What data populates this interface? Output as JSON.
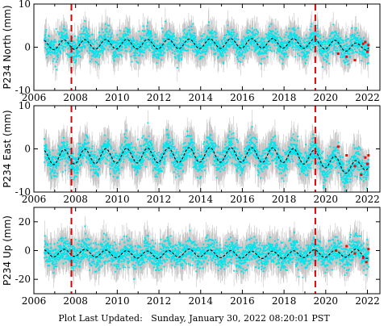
{
  "footer": {
    "label": "Plot Last Updated:",
    "value": "Sunday, January 30, 2022 08:20:01 PST"
  },
  "colors": {
    "error_bars": "#b0b0b0",
    "data_points": "#00e5ee",
    "recent_points": "#ff0000",
    "model": "#000000",
    "event_lines": "#dd0000"
  },
  "chart_data": [
    {
      "type": "scatter",
      "name": "north",
      "ylabel": "P234 North (mm)",
      "xlim": [
        2006,
        2022.6
      ],
      "ylim": [
        -10,
        10
      ],
      "xticks": [
        2006,
        2008,
        2010,
        2012,
        2014,
        2016,
        2018,
        2020,
        2022
      ],
      "yticks": [
        -10,
        0,
        10
      ],
      "event_lines_x": [
        2007.8,
        2019.5
      ],
      "data_start": 2006.5,
      "data_end": 2022.08,
      "seasonal_amplitude": 1.3,
      "trend_per_year": 0.0,
      "scatter_sd": 1.4,
      "error_bar": 2.5,
      "model_x": [
        2006.5,
        2008,
        2010,
        2012,
        2014,
        2016,
        2018,
        2019.5,
        2020.5,
        2021.5,
        2022
      ],
      "model_y": [
        0.5,
        0.6,
        0.7,
        0.7,
        0.8,
        0.9,
        0.9,
        0.8,
        0.5,
        -0.2,
        0.6
      ],
      "recent_x": [
        2020.6,
        2021.0,
        2021.4,
        2021.8,
        2021.9,
        2022.0,
        2022.05
      ],
      "recent_y": [
        -1.5,
        -2.2,
        -3.0,
        0.8,
        1.2,
        -1.0,
        0.5
      ]
    },
    {
      "type": "scatter",
      "name": "east",
      "ylabel": "P234 East (mm)",
      "xlim": [
        2006,
        2022.6
      ],
      "ylim": [
        -10,
        10
      ],
      "xticks": [
        2006,
        2008,
        2010,
        2012,
        2014,
        2016,
        2018,
        2020,
        2022
      ],
      "yticks": [
        -10,
        0,
        10
      ],
      "event_lines_x": [
        2007.8,
        2019.5
      ],
      "data_start": 2006.5,
      "data_end": 2022.08,
      "seasonal_amplitude": 2.0,
      "trend_per_year": 0.0,
      "scatter_sd": 1.5,
      "error_bar": 3.0,
      "model_x": [
        2006.5,
        2008,
        2010,
        2012,
        2014,
        2016,
        2018,
        2019.5,
        2020.5,
        2021.5,
        2022
      ],
      "model_y": [
        -2.0,
        -1.8,
        -1.6,
        -1.5,
        -1.4,
        -1.4,
        -1.5,
        -2.0,
        -3.5,
        -4.5,
        -3.0
      ],
      "recent_x": [
        2020.6,
        2021.0,
        2021.4,
        2021.7,
        2021.9,
        2022.0,
        2022.05
      ],
      "recent_y": [
        0.5,
        -1.5,
        -4.0,
        -6.0,
        -2.0,
        -3.5,
        -1.5
      ]
    },
    {
      "type": "scatter",
      "name": "up",
      "ylabel": "P234 Up (mm)",
      "xlim": [
        2006,
        2022.6
      ],
      "ylim": [
        -30,
        30
      ],
      "xticks": [
        2006,
        2008,
        2010,
        2012,
        2014,
        2016,
        2018,
        2020,
        2022
      ],
      "yticks": [
        -20,
        0,
        20
      ],
      "event_lines_x": [
        2007.8,
        2019.5
      ],
      "data_start": 2006.5,
      "data_end": 2022.08,
      "seasonal_amplitude": 3.0,
      "trend_per_year": 0.0,
      "scatter_sd": 4.5,
      "error_bar": 8.0,
      "model_x": [
        2006.5,
        2008,
        2010,
        2012,
        2013.5,
        2015,
        2016.5,
        2018,
        2019.5,
        2020.5,
        2021.5,
        2022
      ],
      "model_y": [
        -2.0,
        -1.5,
        -2.5,
        -3.0,
        -1.5,
        -2.5,
        -3.0,
        -3.0,
        -2.0,
        -2.5,
        -1.5,
        -3.0
      ],
      "recent_x": [
        2020.5,
        2021.0,
        2021.4,
        2021.8,
        2021.95,
        2022.05
      ],
      "recent_y": [
        0.0,
        3.0,
        -2.0,
        -5.0,
        -8.0,
        1.0
      ]
    }
  ]
}
